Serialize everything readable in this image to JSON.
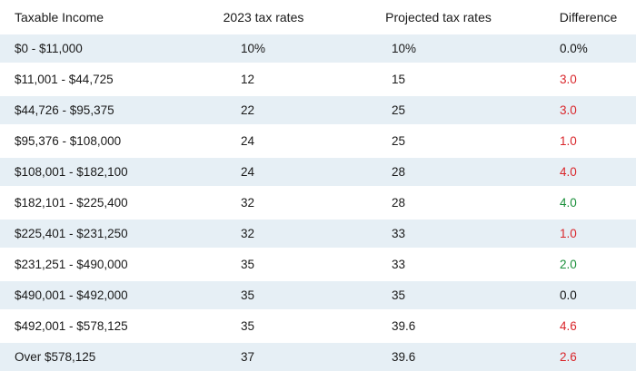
{
  "colors": {
    "row_shade": "#e6eff5",
    "increase": "#d9262b",
    "decrease": "#1a8f3a",
    "neutral": "#111111"
  },
  "table": {
    "headers": [
      "Taxable Income",
      "2023 tax rates",
      "Projected tax rates",
      "Difference"
    ],
    "rows": [
      {
        "income": "$0 - $11,000",
        "rate_2023": "10%",
        "rate_projected": "10%",
        "difference": "0.0%",
        "direction": "neutral"
      },
      {
        "income": "$11,001 - $44,725",
        "rate_2023": "12",
        "rate_projected": "15",
        "difference": "3.0",
        "direction": "up"
      },
      {
        "income": "$44,726 - $95,375",
        "rate_2023": "22",
        "rate_projected": "25",
        "difference": "3.0",
        "direction": "up"
      },
      {
        "income": "$95,376 - $108,000",
        "rate_2023": "24",
        "rate_projected": "25",
        "difference": "1.0",
        "direction": "up"
      },
      {
        "income": "$108,001 - $182,100",
        "rate_2023": "24",
        "rate_projected": "28",
        "difference": "4.0",
        "direction": "up"
      },
      {
        "income": "$182,101 - $225,400",
        "rate_2023": "32",
        "rate_projected": "28",
        "difference": "4.0",
        "direction": "down"
      },
      {
        "income": "$225,401 - $231,250",
        "rate_2023": "32",
        "rate_projected": "33",
        "difference": "1.0",
        "direction": "up"
      },
      {
        "income": "$231,251 - $490,000",
        "rate_2023": "35",
        "rate_projected": "33",
        "difference": "2.0",
        "direction": "down"
      },
      {
        "income": "$490,001 - $492,000",
        "rate_2023": "35",
        "rate_projected": "35",
        "difference": "0.0",
        "direction": "neutral"
      },
      {
        "income": "$492,001 - $578,125",
        "rate_2023": "35",
        "rate_projected": "39.6",
        "difference": "4.6",
        "direction": "up"
      },
      {
        "income": "Over $578,125",
        "rate_2023": "37",
        "rate_projected": "39.6",
        "difference": "2.6",
        "direction": "up"
      }
    ]
  }
}
